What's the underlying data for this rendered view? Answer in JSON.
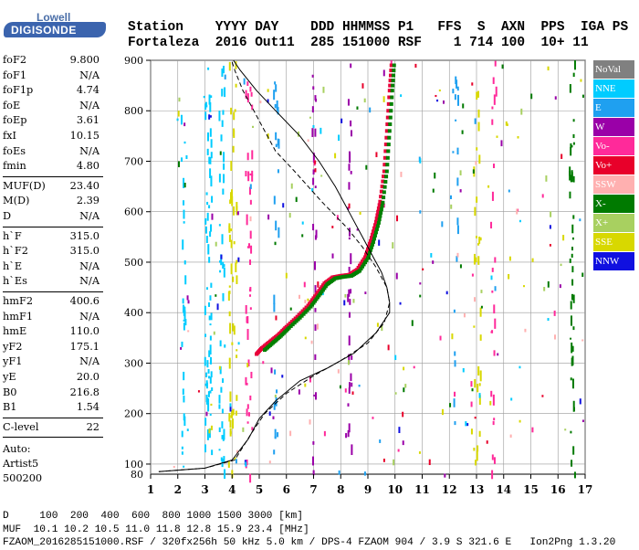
{
  "logo": {
    "top_word": "Lowell",
    "bottom_word": "DIGISONDE"
  },
  "header": {
    "labels": "Station    YYYY DAY    DDD HHMMSS P1   FFS  S  AXN  PPS  IGA PS",
    "values": "Fortaleza  2016 Out11  285 151000 RSF    1 714 100  10+ 11"
  },
  "params_group1": [
    {
      "k": "foF2",
      "v": "9.800"
    },
    {
      "k": "foF1",
      "v": "N/A"
    },
    {
      "k": "foF1p",
      "v": "4.74"
    },
    {
      "k": "foE",
      "v": "N/A"
    },
    {
      "k": "foEp",
      "v": "3.61"
    },
    {
      "k": "fxI",
      "v": "10.15"
    },
    {
      "k": "foEs",
      "v": "N/A"
    },
    {
      "k": "fmin",
      "v": "4.80"
    }
  ],
  "params_group2": [
    {
      "k": "MUF(D)",
      "v": "23.40"
    },
    {
      "k": "M(D)",
      "v": "2.39"
    },
    {
      "k": "D",
      "v": "N/A"
    }
  ],
  "params_group3": [
    {
      "k": "h`F",
      "v": "315.0"
    },
    {
      "k": "h`F2",
      "v": "315.0"
    },
    {
      "k": "h`E",
      "v": "N/A"
    },
    {
      "k": "h`Es",
      "v": "N/A"
    }
  ],
  "params_group4": [
    {
      "k": "hmF2",
      "v": "400.6"
    },
    {
      "k": "hmF1",
      "v": "N/A"
    },
    {
      "k": "hmE",
      "v": "110.0"
    },
    {
      "k": "yF2",
      "v": "175.1"
    },
    {
      "k": "yF1",
      "v": "N/A"
    },
    {
      "k": "yE",
      "v": "20.0"
    },
    {
      "k": "B0",
      "v": "216.8"
    },
    {
      "k": "B1",
      "v": "1.54"
    }
  ],
  "clevel": {
    "k": "C-level",
    "v": "22"
  },
  "auto": {
    "l1": "Auto:",
    "l2": "Artist5",
    "l3": "500200"
  },
  "legend": [
    {
      "label": "NoVal",
      "color": "#808080"
    },
    {
      "label": "NNE",
      "color": "#00ccff"
    },
    {
      "label": "E",
      "color": "#1fa0f0"
    },
    {
      "label": "W",
      "color": "#9a00a8"
    },
    {
      "label": "Vo-",
      "color": "#ff2a9a"
    },
    {
      "label": "Vo+",
      "color": "#e8002a"
    },
    {
      "label": "SSW",
      "color": "#ffb0b0"
    },
    {
      "label": "X-",
      "color": "#007a00"
    },
    {
      "label": "X+",
      "color": "#a8d060"
    },
    {
      "label": "SSE",
      "color": "#d8d800"
    },
    {
      "label": "NNW",
      "color": "#1010e0"
    }
  ],
  "bottom": {
    "line1": "D     100  200  400  600  800 1000 1500 3000 [km]",
    "line2": "MUF  10.1 10.2 10.5 11.0 11.8 12.8 15.9 23.4 [MHz]",
    "line3": "FZAOM_2016285151000.RSF / 320fx256h 50 kHz 5.0 km / DPS-4 FZAOM 904 / 3.9 S 321.6 E   Ion2Png 1.3.20"
  },
  "chart_data": {
    "type": "scatter",
    "title": "",
    "xlabel": "",
    "ylabel": "",
    "xlim": [
      1,
      17
    ],
    "ylim": [
      80,
      900
    ],
    "x_ticks": [
      1,
      2,
      3,
      4,
      5,
      6,
      7,
      8,
      9,
      10,
      11,
      12,
      13,
      14,
      15,
      16,
      17
    ],
    "y_ticks": [
      100,
      200,
      300,
      400,
      500,
      600,
      700,
      800,
      900
    ],
    "grid": true,
    "series": [
      {
        "name": "Vo-",
        "color": "#e8003a",
        "points": [
          [
            4.9,
            318
          ],
          [
            5.1,
            330
          ],
          [
            5.4,
            343
          ],
          [
            5.7,
            356
          ],
          [
            6.0,
            372
          ],
          [
            6.4,
            392
          ],
          [
            6.8,
            414
          ],
          [
            7.1,
            436
          ],
          [
            7.4,
            458
          ],
          [
            7.7,
            470
          ],
          [
            8.0,
            473
          ],
          [
            8.3,
            475
          ],
          [
            8.6,
            485
          ],
          [
            8.9,
            510
          ],
          [
            9.1,
            542
          ],
          [
            9.3,
            580
          ],
          [
            9.45,
            620
          ],
          [
            9.6,
            680
          ],
          [
            9.7,
            760
          ],
          [
            9.8,
            840
          ],
          [
            9.88,
            900
          ]
        ]
      },
      {
        "name": "X-",
        "color": "#008000",
        "points": [
          [
            5.2,
            326
          ],
          [
            5.5,
            340
          ],
          [
            5.8,
            354
          ],
          [
            6.1,
            370
          ],
          [
            6.5,
            390
          ],
          [
            6.9,
            412
          ],
          [
            7.2,
            434
          ],
          [
            7.5,
            456
          ],
          [
            7.8,
            468
          ],
          [
            8.1,
            471
          ],
          [
            8.4,
            473
          ],
          [
            8.7,
            483
          ],
          [
            9.0,
            508
          ],
          [
            9.2,
            540
          ],
          [
            9.4,
            578
          ],
          [
            9.55,
            618
          ],
          [
            9.7,
            680
          ],
          [
            9.8,
            760
          ],
          [
            9.9,
            840
          ],
          [
            9.98,
            900
          ]
        ]
      }
    ],
    "profiles": [
      {
        "name": "true-height",
        "style": "solid",
        "points": [
          [
            1.3,
            85
          ],
          [
            3.0,
            92
          ],
          [
            4.0,
            108
          ],
          [
            4.6,
            150
          ],
          [
            5.0,
            190
          ],
          [
            5.6,
            225
          ],
          [
            6.5,
            265
          ],
          [
            7.5,
            290
          ],
          [
            8.5,
            320
          ],
          [
            9.3,
            360
          ],
          [
            9.8,
            400
          ],
          [
            9.8,
            420
          ],
          [
            9.7,
            450
          ],
          [
            9.5,
            480
          ],
          [
            9.2,
            510
          ],
          [
            8.8,
            550
          ],
          [
            8.3,
            600
          ],
          [
            7.8,
            650
          ],
          [
            7.2,
            700
          ],
          [
            6.5,
            750
          ],
          [
            5.6,
            800
          ],
          [
            4.9,
            840
          ],
          [
            4.3,
            880
          ],
          [
            4.05,
            900
          ]
        ]
      },
      {
        "name": "virtual-height",
        "style": "dashed",
        "points": [
          [
            1.3,
            85
          ],
          [
            3.0,
            92
          ],
          [
            4.1,
            108
          ],
          [
            4.7,
            160
          ],
          [
            5.2,
            200
          ],
          [
            6.0,
            240
          ],
          [
            7.0,
            275
          ],
          [
            8.0,
            305
          ],
          [
            9.0,
            340
          ],
          [
            9.6,
            380
          ],
          [
            9.8,
            420
          ],
          [
            9.7,
            450
          ],
          [
            9.3,
            490
          ],
          [
            8.8,
            530
          ],
          [
            8.2,
            570
          ],
          [
            7.3,
            620
          ],
          [
            6.3,
            680
          ],
          [
            5.6,
            720
          ],
          [
            5.2,
            760
          ],
          [
            4.8,
            800
          ],
          [
            4.4,
            840
          ],
          [
            4.1,
            880
          ],
          [
            3.98,
            900
          ]
        ]
      }
    ]
  }
}
